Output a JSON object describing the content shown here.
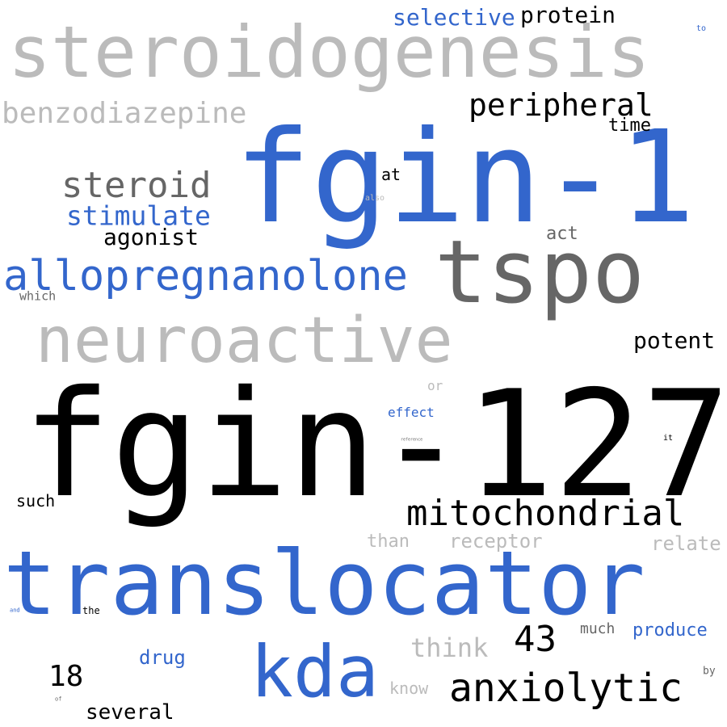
{
  "colors": {
    "blue": "#3366cc",
    "black": "#000000",
    "dark_gray": "#666666",
    "light_gray": "#bbbbbb"
  },
  "words": [
    {
      "id": "w-fgin-127",
      "text": "fgin-127",
      "color": "black"
    },
    {
      "id": "w-fgin-1",
      "text": "fgin-1",
      "color": "blue"
    },
    {
      "id": "w-translocator",
      "text": "translocator",
      "color": "blue"
    },
    {
      "id": "w-steroidogenesis",
      "text": "steroidogenesis",
      "color": "light_gray"
    },
    {
      "id": "w-tspo",
      "text": "tspo",
      "color": "dark_gray"
    },
    {
      "id": "w-neuroactive",
      "text": "neuroactive",
      "color": "light_gray"
    },
    {
      "id": "w-kda",
      "text": "kda",
      "color": "blue"
    },
    {
      "id": "w-allopregnanolone",
      "text": "allopregnanolone",
      "color": "blue"
    },
    {
      "id": "w-mitochondrial",
      "text": "mitochondrial",
      "color": "black"
    },
    {
      "id": "w-anxiolytic",
      "text": "anxiolytic",
      "color": "black"
    },
    {
      "id": "w-steroid",
      "text": "steroid",
      "color": "dark_gray"
    },
    {
      "id": "w-peripheral",
      "text": "peripheral",
      "color": "black"
    },
    {
      "id": "w-benzodiazepine",
      "text": "benzodiazepine",
      "color": "light_gray"
    },
    {
      "id": "w-43",
      "text": "43",
      "color": "black"
    },
    {
      "id": "w-stimulate",
      "text": "stimulate",
      "color": "blue"
    },
    {
      "id": "w-18",
      "text": "18",
      "color": "black"
    },
    {
      "id": "w-selective",
      "text": "selective",
      "color": "blue"
    },
    {
      "id": "w-protein",
      "text": "protein",
      "color": "black"
    },
    {
      "id": "w-agonist",
      "text": "agonist",
      "color": "black"
    },
    {
      "id": "w-think",
      "text": "think",
      "color": "light_gray"
    },
    {
      "id": "w-potent",
      "text": "potent",
      "color": "black"
    },
    {
      "id": "w-several",
      "text": "several",
      "color": "black"
    },
    {
      "id": "w-receptor",
      "text": "receptor",
      "color": "light_gray"
    },
    {
      "id": "w-time",
      "text": "time",
      "color": "black"
    },
    {
      "id": "w-drug",
      "text": "drug",
      "color": "blue"
    },
    {
      "id": "w-produce",
      "text": "produce",
      "color": "blue"
    },
    {
      "id": "w-relate",
      "text": "relate",
      "color": "light_gray"
    },
    {
      "id": "w-act",
      "text": "act",
      "color": "dark_gray"
    },
    {
      "id": "w-than",
      "text": "than",
      "color": "light_gray"
    },
    {
      "id": "w-much",
      "text": "much",
      "color": "dark_gray"
    },
    {
      "id": "w-know",
      "text": "know",
      "color": "light_gray"
    },
    {
      "id": "w-such",
      "text": "such",
      "color": "black"
    },
    {
      "id": "w-at",
      "text": "at",
      "color": "black"
    },
    {
      "id": "w-effect",
      "text": "effect",
      "color": "blue"
    },
    {
      "id": "w-which",
      "text": "which",
      "color": "dark_gray"
    },
    {
      "id": "w-or",
      "text": "or",
      "color": "light_gray"
    },
    {
      "id": "w-the",
      "text": "the",
      "color": "black"
    },
    {
      "id": "w-by",
      "text": "by",
      "color": "dark_gray"
    },
    {
      "id": "w-also",
      "text": "also",
      "color": "light_gray"
    },
    {
      "id": "w-to",
      "text": "to",
      "color": "blue"
    },
    {
      "id": "w-it",
      "text": "it",
      "color": "black"
    },
    {
      "id": "w-and",
      "text": "and",
      "color": "blue"
    },
    {
      "id": "w-of",
      "text": "of",
      "color": "dark_gray"
    },
    {
      "id": "w-reference",
      "text": "reference",
      "color": "dark_gray"
    }
  ]
}
